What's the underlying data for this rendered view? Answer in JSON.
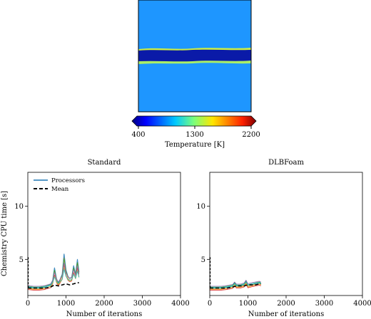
{
  "temperature_field": {
    "colorbar": {
      "label": "Temperature [K]",
      "ticks": [
        "400",
        "1300",
        "2200"
      ],
      "vmin": 400,
      "vmax": 2200,
      "colormap": "jet"
    }
  },
  "chart_data": [
    {
      "type": "line",
      "title": "Standard",
      "xlabel": "Number of iterations",
      "ylabel": "Chemistry CPU time [s]",
      "xlim": [
        0,
        4000
      ],
      "ylim": [
        1.6,
        13.2
      ],
      "xticks": [
        "0",
        "1000",
        "2000",
        "3000",
        "4000"
      ],
      "yticks": [
        "5",
        "10"
      ],
      "legend": {
        "placement": "top-left",
        "entries": [
          "Processors",
          "Mean"
        ]
      },
      "series": [
        {
          "name": "Processors",
          "style": "solid",
          "color": "#1f77b4",
          "x": [
            0,
            150,
            300,
            450,
            600,
            650,
            700,
            750,
            800,
            900,
            950,
            1000,
            1050,
            1100,
            1150,
            1200,
            1250,
            1300,
            1340
          ],
          "y": [
            2.4,
            2.3,
            2.3,
            2.4,
            2.6,
            3.0,
            4.2,
            3.2,
            2.7,
            3.6,
            5.5,
            4.0,
            3.4,
            3.2,
            3.3,
            4.4,
            3.6,
            5.0,
            3.8
          ]
        },
        {
          "name": "Mean",
          "style": "dashed",
          "color": "#000000",
          "x": [
            0,
            150,
            300,
            450,
            600,
            700,
            800,
            900,
            1000,
            1100,
            1200,
            1300,
            1340
          ],
          "y": [
            2.3,
            2.3,
            2.3,
            2.3,
            2.4,
            2.6,
            2.5,
            2.6,
            2.7,
            2.6,
            2.7,
            2.8,
            2.8
          ]
        }
      ]
    },
    {
      "type": "line",
      "title": "DLBFoam",
      "xlabel": "Number of iterations",
      "ylabel": "",
      "xlim": [
        0,
        4000
      ],
      "ylim": [
        1.6,
        13.2
      ],
      "xticks": [
        "0",
        "1000",
        "2000",
        "3000",
        "4000"
      ],
      "yticks": [
        "5",
        "10"
      ],
      "series": [
        {
          "name": "Processors",
          "style": "solid",
          "color": "#1f77b4",
          "x": [
            0,
            150,
            300,
            450,
            600,
            650,
            700,
            800,
            900,
            950,
            1000,
            1100,
            1200,
            1300,
            1340
          ],
          "y": [
            2.3,
            2.3,
            2.3,
            2.4,
            2.5,
            2.8,
            2.5,
            2.5,
            2.6,
            3.0,
            2.5,
            2.6,
            2.7,
            2.8,
            2.7
          ]
        },
        {
          "name": "Mean",
          "style": "dashed",
          "color": "#000000",
          "x": [
            0,
            150,
            300,
            450,
            600,
            700,
            800,
            900,
            1000,
            1100,
            1200,
            1300,
            1340
          ],
          "y": [
            2.3,
            2.3,
            2.3,
            2.3,
            2.4,
            2.5,
            2.5,
            2.5,
            2.6,
            2.6,
            2.6,
            2.7,
            2.7
          ]
        }
      ]
    }
  ]
}
